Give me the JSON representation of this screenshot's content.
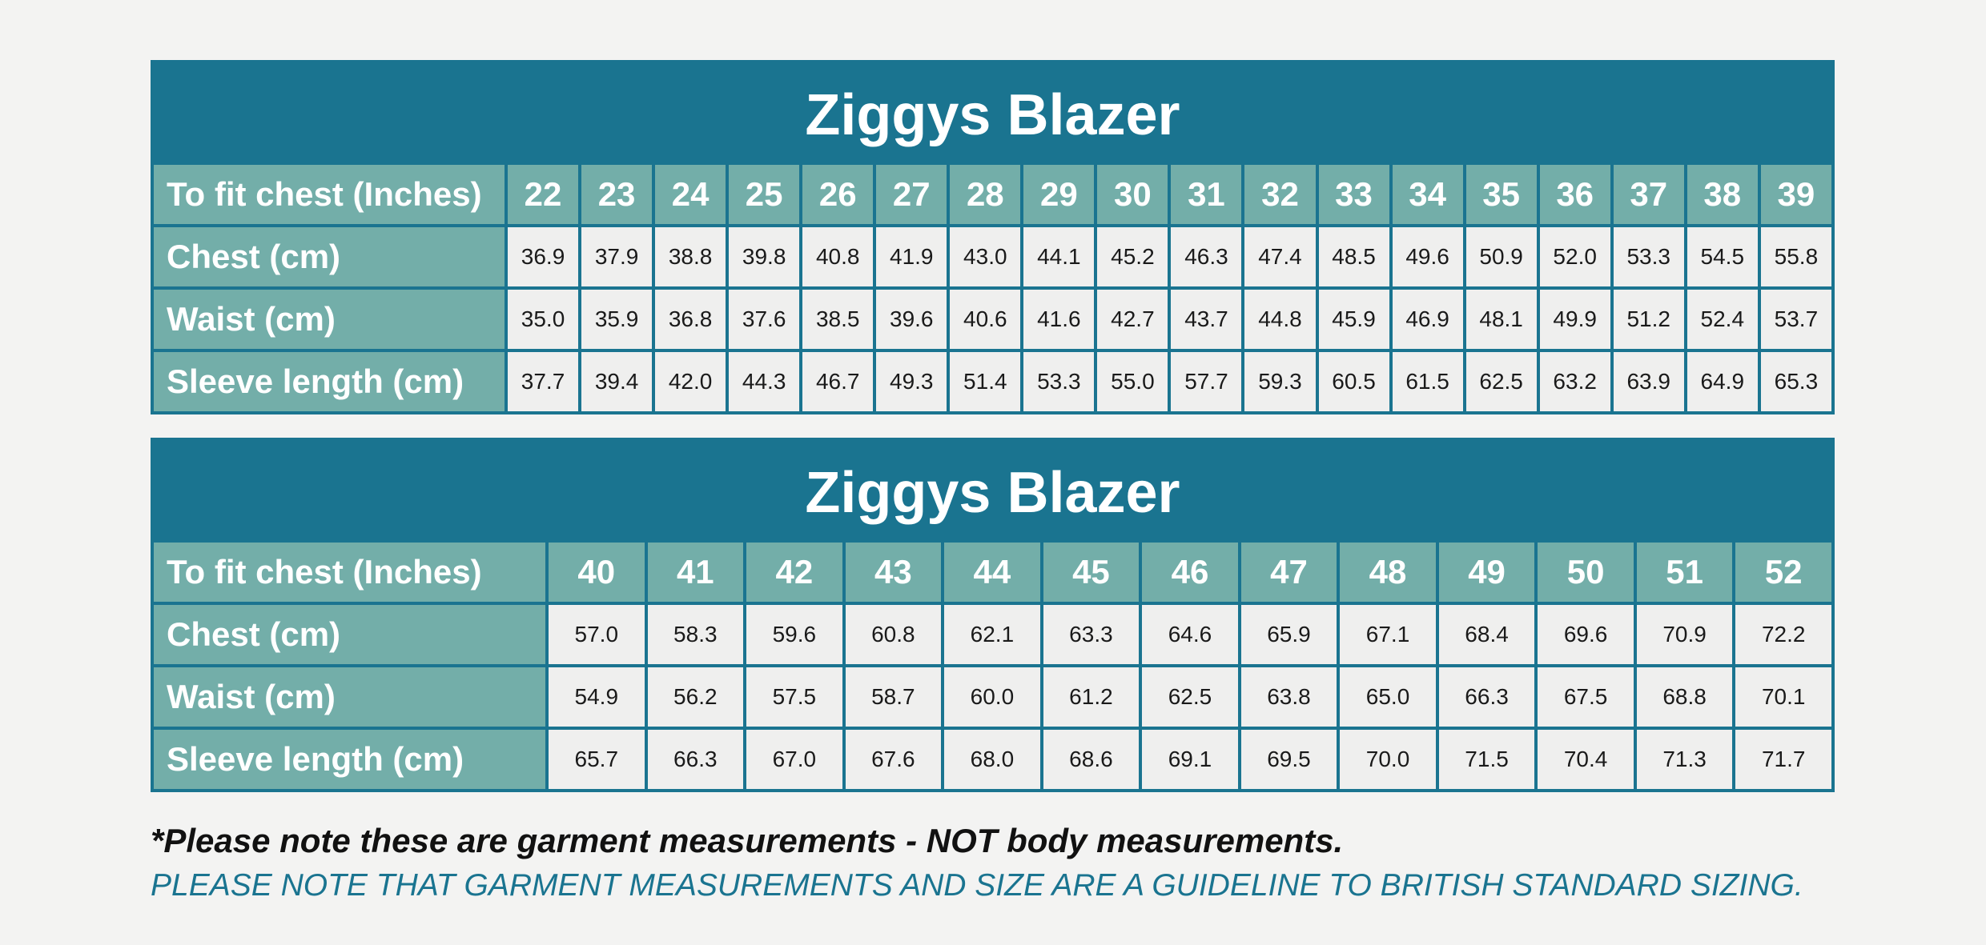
{
  "tables": [
    {
      "title": "Ziggys Blazer",
      "header_label": "To fit chest (Inches)",
      "sizes": [
        "22",
        "23",
        "24",
        "25",
        "26",
        "27",
        "28",
        "29",
        "30",
        "31",
        "32",
        "33",
        "34",
        "35",
        "36",
        "37",
        "38",
        "39"
      ],
      "rows": [
        {
          "label": "Chest (cm)",
          "values": [
            "36.9",
            "37.9",
            "38.8",
            "39.8",
            "40.8",
            "41.9",
            "43.0",
            "44.1",
            "45.2",
            "46.3",
            "47.4",
            "48.5",
            "49.6",
            "50.9",
            "52.0",
            "53.3",
            "54.5",
            "55.8"
          ]
        },
        {
          "label": "Waist (cm)",
          "values": [
            "35.0",
            "35.9",
            "36.8",
            "37.6",
            "38.5",
            "39.6",
            "40.6",
            "41.6",
            "42.7",
            "43.7",
            "44.8",
            "45.9",
            "46.9",
            "48.1",
            "49.9",
            "51.2",
            "52.4",
            "53.7"
          ]
        },
        {
          "label": "Sleeve length (cm)",
          "values": [
            "37.7",
            "39.4",
            "42.0",
            "44.3",
            "46.7",
            "49.3",
            "51.4",
            "53.3",
            "55.0",
            "57.7",
            "59.3",
            "60.5",
            "61.5",
            "62.5",
            "63.2",
            "63.9",
            "64.9",
            "65.3"
          ]
        }
      ]
    },
    {
      "title": "Ziggys Blazer",
      "header_label": "To fit chest (Inches)",
      "sizes": [
        "40",
        "41",
        "42",
        "43",
        "44",
        "45",
        "46",
        "47",
        "48",
        "49",
        "50",
        "51",
        "52"
      ],
      "rows": [
        {
          "label": "Chest (cm)",
          "values": [
            "57.0",
            "58.3",
            "59.6",
            "60.8",
            "62.1",
            "63.3",
            "64.6",
            "65.9",
            "67.1",
            "68.4",
            "69.6",
            "70.9",
            "72.2"
          ]
        },
        {
          "label": "Waist (cm)",
          "values": [
            "54.9",
            "56.2",
            "57.5",
            "58.7",
            "60.0",
            "61.2",
            "62.5",
            "63.8",
            "65.0",
            "66.3",
            "67.5",
            "68.8",
            "70.1"
          ]
        },
        {
          "label": "Sleeve length (cm)",
          "values": [
            "65.7",
            "66.3",
            "67.0",
            "67.6",
            "68.0",
            "68.6",
            "69.1",
            "69.5",
            "70.0",
            "71.5",
            "70.4",
            "71.3",
            "71.7"
          ]
        }
      ]
    }
  ],
  "notes": {
    "garment_note": "*Please note these are garment measurements - NOT body measurements.",
    "guideline_note": "PLEASE NOTE THAT GARMENT MEASUREMENTS AND SIZE ARE A GUIDELINE TO BRITISH STANDARD SIZING."
  },
  "colors": {
    "title_bg": "#1a7490",
    "label_bg": "#73aea9",
    "cell_bg": "#efefee",
    "page_bg": "#f3f3f2"
  }
}
